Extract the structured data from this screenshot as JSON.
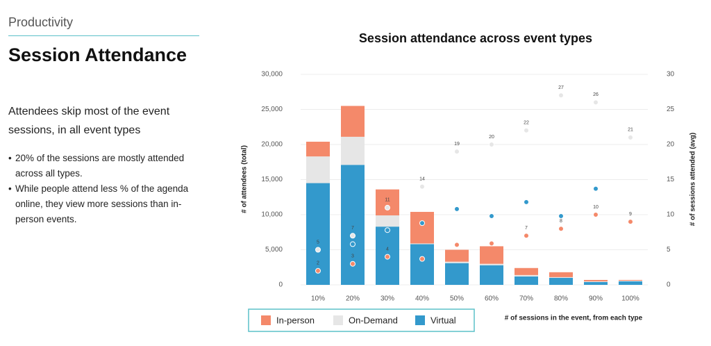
{
  "header": {
    "section": "Productivity",
    "title": "Session Attendance"
  },
  "lead": "Attendees skip most of the event sessions, in all event types",
  "bullets": [
    "20% of the sessions are mostly attended across all types.",
    "While people attend less % of the agenda online, they view more sessions than in-person events."
  ],
  "chart_data": {
    "type": "bar",
    "stacked": true,
    "title": "Session attendance across event types",
    "x_label": "# of sessions in the event, from each type",
    "y_label": "# of attendees (total)",
    "y2_label": "# of sessions attended (avg)",
    "categories": [
      "10%",
      "20%",
      "30%",
      "40%",
      "50%",
      "60%",
      "70%",
      "80%",
      "90%",
      "100%"
    ],
    "series": [
      {
        "name": "Virtual",
        "type": "bar",
        "color": "#3399cc",
        "values": [
          14500,
          17100,
          8300,
          5800,
          3100,
          2800,
          1200,
          1000,
          400,
          500
        ]
      },
      {
        "name": "On-Demand",
        "type": "bar",
        "color": "#e6e6e6",
        "values": [
          3800,
          4000,
          1600,
          100,
          200,
          200,
          200,
          100,
          100,
          100
        ]
      },
      {
        "name": "In-person",
        "type": "bar",
        "color": "#f4896a",
        "values": [
          2100,
          4400,
          3700,
          4500,
          1700,
          2500,
          1000,
          700,
          200,
          100
        ]
      },
      {
        "name": "In-person",
        "type": "scatter",
        "axis": "y2",
        "color": "#f4896a",
        "values": [
          2,
          3,
          4,
          3.7,
          5.7,
          5.9,
          7,
          8,
          10,
          9
        ],
        "value_labels": [
          "2",
          "3",
          "4",
          null,
          null,
          null,
          "7",
          "8",
          "10",
          "9"
        ]
      },
      {
        "name": "On-Demand",
        "type": "scatter",
        "axis": "y2",
        "color": "#e6e6e6",
        "values": [
          5,
          7,
          11,
          14,
          19,
          20,
          22,
          27,
          26,
          21
        ],
        "value_labels": [
          "5",
          "7",
          "11",
          "14",
          "19",
          "20",
          "22",
          "27",
          "26",
          "21"
        ]
      },
      {
        "name": "Virtual",
        "type": "scatter",
        "axis": "y2",
        "color": "#3399cc",
        "values": [
          null,
          5.8,
          7.8,
          8.8,
          10.8,
          9.8,
          11.8,
          9.8,
          13.7,
          null
        ]
      }
    ],
    "legend_order": [
      2,
      1,
      0
    ],
    "ylim": [
      0,
      30000
    ],
    "yticks": [
      0,
      {
        "value": 5000,
        "label": "5,000"
      },
      {
        "value": 10000,
        "label": "10,000"
      },
      {
        "value": 15000,
        "label": "15,000"
      },
      {
        "value": 20000,
        "label": "20,000"
      },
      {
        "value": 25000,
        "label": "25,000"
      },
      {
        "value": 30000,
        "label": "30,000"
      }
    ],
    "y2lim": [
      0,
      30
    ],
    "y2ticks": [
      0,
      5,
      10,
      15,
      20,
      25,
      30
    ],
    "grid": true
  }
}
